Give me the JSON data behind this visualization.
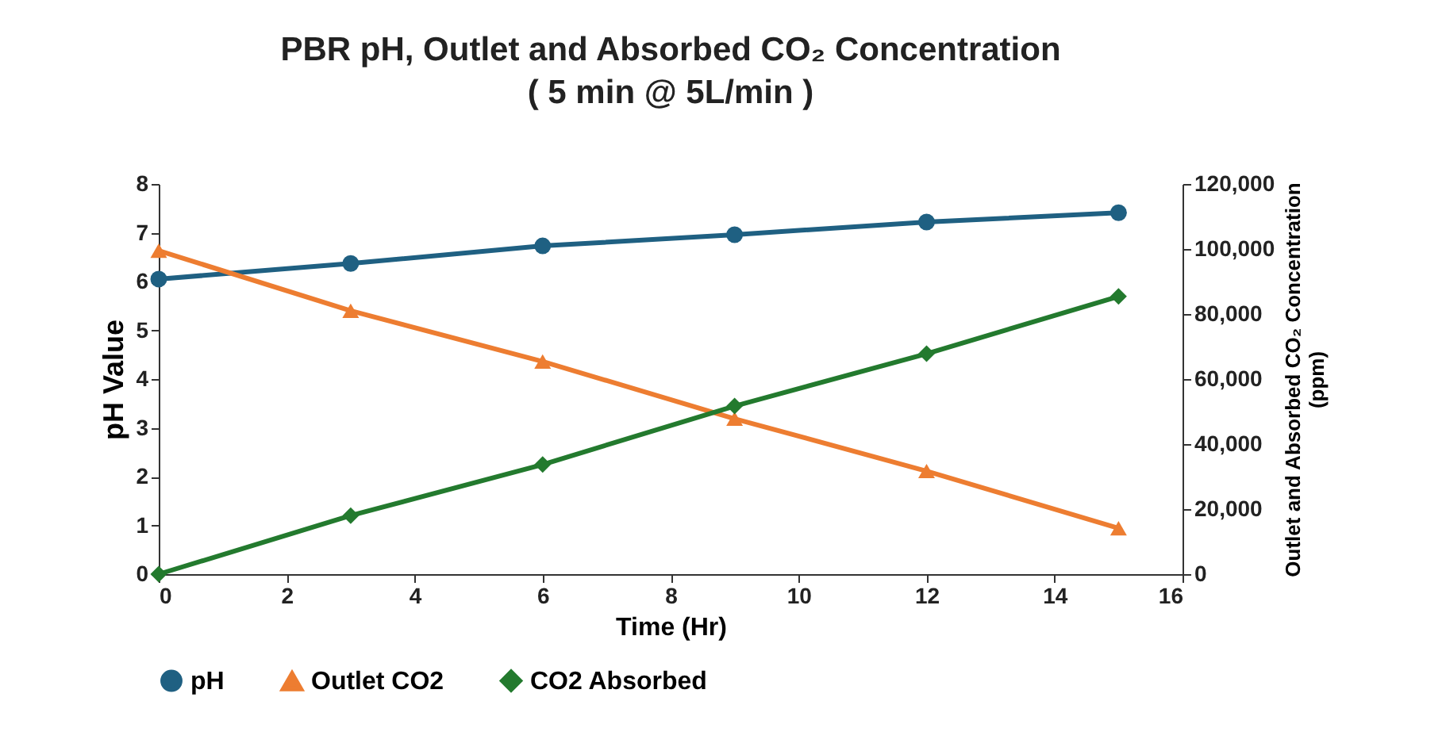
{
  "chart_data": {
    "type": "line",
    "title": "PBR pH, Outlet and Absorbed CO₂ Concentration",
    "subtitle": "( 5 min @ 5L/min )",
    "xlabel": "Time (Hr)",
    "ylabel": "pH Value",
    "y2label": "Outlet and Absorbed CO₂ Concentration (ppm)",
    "x": [
      0,
      3,
      6,
      9,
      12,
      15
    ],
    "series": [
      {
        "name": "pH",
        "color": "#1f6082",
        "marker": "circle",
        "values": [
          6.05,
          6.37,
          6.73,
          6.96,
          7.22,
          7.41
        ]
      },
      {
        "name": "Outlet CO2",
        "color": "#ed7d31",
        "marker": "triangle",
        "axis": "y2",
        "values": [
          99500,
          81000,
          65400,
          47800,
          31700,
          14100
        ]
      },
      {
        "name": "CO2 Absorbed",
        "color": "#237a2e",
        "marker": "diamond",
        "axis": "y2",
        "values": [
          0,
          18000,
          33700,
          51700,
          67800,
          85400
        ]
      }
    ],
    "xlim": [
      0,
      16
    ],
    "xticks": [
      0,
      2,
      4,
      6,
      8,
      10,
      12,
      14,
      16
    ],
    "ylim": [
      0,
      8
    ],
    "yticks": [
      0,
      1,
      2,
      3,
      4,
      5,
      6,
      7,
      8
    ],
    "y2lim": [
      0,
      120000
    ],
    "y2ticks": [
      0,
      {
        "value": 20000,
        "label": "20,000"
      },
      {
        "value": 40000,
        "label": "40,000"
      },
      {
        "value": 60000,
        "label": "60,000"
      },
      {
        "value": 80000,
        "label": "80,000"
      },
      {
        "value": 100000,
        "label": "100,000"
      },
      {
        "value": 120000,
        "label": "120,000"
      }
    ],
    "grid": false,
    "legend": "bottom",
    "line_style": "solid"
  }
}
